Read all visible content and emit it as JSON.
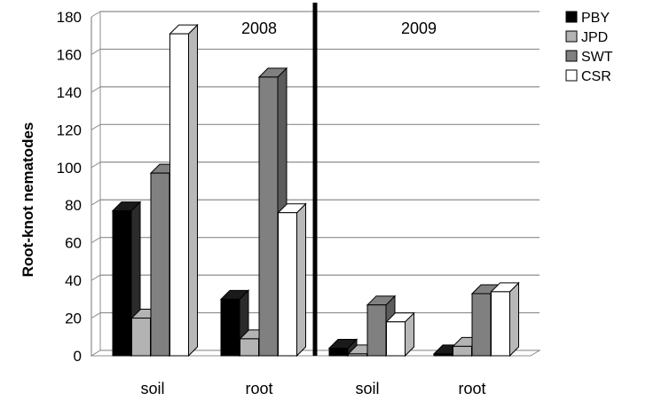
{
  "chart_data": {
    "type": "bar",
    "style": "3d-clustered-column",
    "ylabel": "Root-knot nematodes",
    "xlabel": "",
    "ylim": [
      0,
      180
    ],
    "yticks": [
      0,
      20,
      40,
      60,
      80,
      100,
      120,
      140,
      160,
      180
    ],
    "grid": true,
    "legend_position": "top-right",
    "groups": [
      "2008",
      "2009"
    ],
    "categories": [
      "soil",
      "root",
      "soil",
      "root"
    ],
    "series": [
      {
        "name": "PBY",
        "color": "#000000",
        "values": [
          77,
          30,
          4,
          1
        ]
      },
      {
        "name": "JPD",
        "color": "#b3b3b3",
        "values": [
          20,
          9,
          1,
          5
        ]
      },
      {
        "name": "SWT",
        "color": "#808080",
        "values": [
          97,
          148,
          27,
          33
        ]
      },
      {
        "name": "CSR",
        "color": "#ffffff",
        "values": [
          171,
          76,
          18,
          34
        ]
      }
    ]
  }
}
